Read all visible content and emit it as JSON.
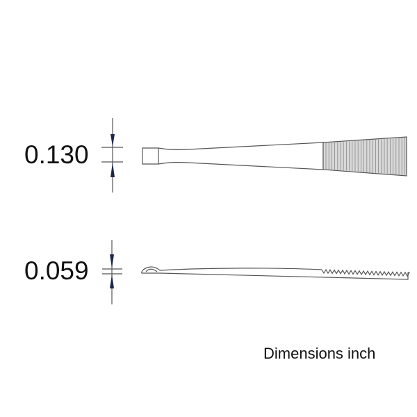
{
  "dimensions": {
    "width_label": "0.130",
    "thickness_label": "0.059"
  },
  "units_note": "Dimensions inch",
  "colors": {
    "outline": "#555555",
    "arrow": "#1c2748",
    "grip_fill": "#d8d8d8",
    "text": "#111111"
  }
}
